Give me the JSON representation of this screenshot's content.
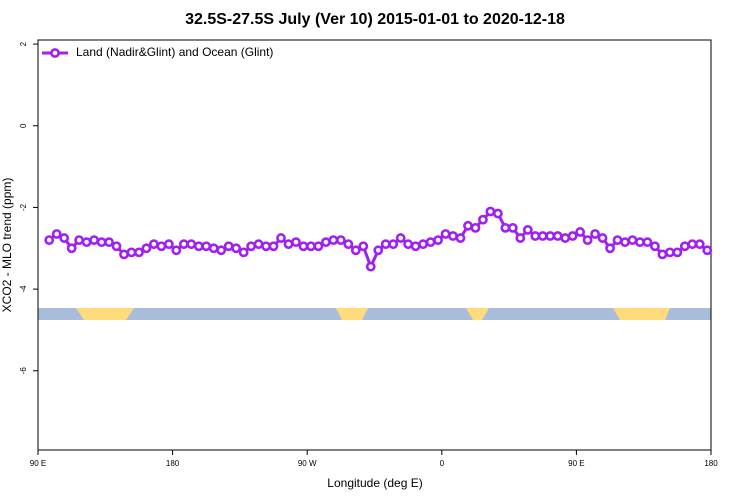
{
  "chart_data": {
    "type": "line",
    "title": "32.5S-27.5S July (Ver 10)   2015-01-01 to 2020-12-18",
    "x_label": "Longitude (deg E)",
    "y_label": "XCO2 - MLO trend (ppm)",
    "xlim": [
      90,
      540
    ],
    "ylim": [
      -7.94,
      2.1
    ],
    "xticks": [
      {
        "value": 90,
        "label": "90 E"
      },
      {
        "value": 180,
        "label": "180"
      },
      {
        "value": 270,
        "label": "90 W"
      },
      {
        "value": 360,
        "label": "0"
      },
      {
        "value": 450,
        "label": "90 E"
      },
      {
        "value": 540,
        "label": "180"
      }
    ],
    "yticks": [
      2,
      0,
      -2,
      -4,
      -6
    ],
    "legend": "top-left",
    "grid": false,
    "x": [
      97.5,
      102.5,
      107.5,
      112.5,
      117.5,
      122.5,
      127.5,
      132.5,
      137.5,
      142.5,
      147.5,
      152.5,
      157.5,
      162.5,
      167.5,
      172.5,
      177.5,
      182.5,
      187.5,
      192.5,
      197.5,
      202.5,
      207.5,
      212.5,
      217.5,
      222.5,
      227.5,
      232.5,
      237.5,
      242.5,
      247.5,
      252.5,
      257.5,
      262.5,
      267.5,
      272.5,
      277.5,
      282.5,
      287.5,
      292.5,
      297.5,
      302.5,
      307.5,
      312.5,
      317.5,
      322.5,
      327.5,
      332.5,
      337.5,
      342.5,
      347.5,
      352.5,
      357.5,
      362.5,
      367.5,
      372.5,
      377.5,
      382.5,
      387.5,
      392.5,
      397.5,
      402.5,
      407.5,
      412.5,
      417.5,
      422.5,
      427.5,
      432.5,
      437.5,
      442.5,
      447.5,
      452.5,
      457.5,
      462.5,
      467.5,
      472.5,
      477.5,
      482.5,
      487.5,
      492.5,
      497.5,
      502.5,
      507.5,
      512.5,
      517.5,
      522.5,
      527.5,
      532.5,
      537.5
    ],
    "series": [
      {
        "name": "Land (Nadir&Glint) and Ocean (Glint)",
        "color": "#a020f0",
        "values": [
          -2.8,
          -2.65,
          -2.75,
          -3.0,
          -2.8,
          -2.85,
          -2.8,
          -2.85,
          -2.85,
          -2.95,
          -3.15,
          -3.1,
          -3.1,
          -3.0,
          -2.9,
          -2.95,
          -2.9,
          -3.05,
          -2.9,
          -2.9,
          -2.95,
          -2.95,
          -3.0,
          -3.05,
          -2.95,
          -3.0,
          -3.1,
          -2.95,
          -2.9,
          -2.95,
          -2.95,
          -2.75,
          -2.9,
          -2.85,
          -2.95,
          -2.95,
          -2.95,
          -2.85,
          -2.8,
          -2.8,
          -2.9,
          -3.05,
          -2.95,
          -3.45,
          -3.05,
          -2.9,
          -2.9,
          -2.75,
          -2.9,
          -2.95,
          -2.9,
          -2.85,
          -2.8,
          -2.65,
          -2.7,
          -2.75,
          -2.45,
          -2.5,
          -2.3,
          -2.1,
          -2.15,
          -2.5,
          -2.5,
          -2.75,
          -2.55,
          -2.7,
          -2.7,
          -2.7,
          -2.7,
          -2.75,
          -2.7,
          -2.6,
          -2.8,
          -2.65,
          -2.75,
          -3.0,
          -2.8,
          -2.85,
          -2.8,
          -2.85,
          -2.85,
          -2.95,
          -3.15,
          -3.1,
          -3.1,
          -2.95,
          -2.9,
          -2.9,
          -3.05
        ]
      }
    ]
  }
}
